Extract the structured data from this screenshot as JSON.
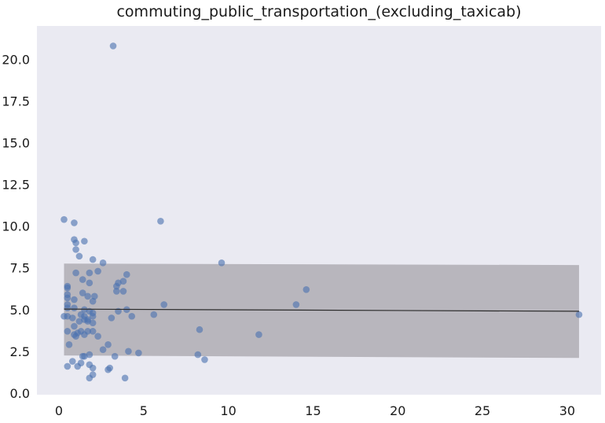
{
  "chart_data": {
    "type": "scatter",
    "title": "commuting_public_transportation_(excluding_taxicab)",
    "xlabel": "",
    "ylabel": "",
    "xlim": [
      -1.3,
      32.0
    ],
    "ylim": [
      -0.1,
      22.0
    ],
    "x_ticks": [
      0,
      5,
      10,
      15,
      20,
      25,
      30
    ],
    "x_tick_labels": [
      "0",
      "5",
      "10",
      "15",
      "20",
      "25",
      "30"
    ],
    "y_ticks": [
      0.0,
      2.5,
      5.0,
      7.5,
      10.0,
      12.5,
      15.0,
      17.5,
      20.0
    ],
    "y_tick_labels": [
      "0.0",
      "2.5",
      "5.0",
      "7.5",
      "10.0",
      "12.5",
      "15.0",
      "17.5",
      "20.0"
    ],
    "grid": false,
    "colors": {
      "background": "#eaeaf2",
      "points": "#4c72b0",
      "band": "#b8b6bd",
      "line": "#2b2b2b"
    },
    "points": [
      [
        3.2,
        20.8
      ],
      [
        0.3,
        10.4
      ],
      [
        0.9,
        10.2
      ],
      [
        6.0,
        10.3
      ],
      [
        0.9,
        9.2
      ],
      [
        1.0,
        9.0
      ],
      [
        1.5,
        9.1
      ],
      [
        1.0,
        8.6
      ],
      [
        1.2,
        8.2
      ],
      [
        2.0,
        8.0
      ],
      [
        2.6,
        7.8
      ],
      [
        9.6,
        7.8
      ],
      [
        1.0,
        7.2
      ],
      [
        1.8,
        7.2
      ],
      [
        2.3,
        7.3
      ],
      [
        4.0,
        7.1
      ],
      [
        1.8,
        6.6
      ],
      [
        3.5,
        6.6
      ],
      [
        3.8,
        6.7
      ],
      [
        3.4,
        6.4
      ],
      [
        0.5,
        6.4
      ],
      [
        0.5,
        6.3
      ],
      [
        1.4,
        6.8
      ],
      [
        1.4,
        6.0
      ],
      [
        3.4,
        6.1
      ],
      [
        3.8,
        6.1
      ],
      [
        14.6,
        6.2
      ],
      [
        0.5,
        5.9
      ],
      [
        0.5,
        5.7
      ],
      [
        0.9,
        5.6
      ],
      [
        1.7,
        5.8
      ],
      [
        2.1,
        5.8
      ],
      [
        2.0,
        5.5
      ],
      [
        0.5,
        5.3
      ],
      [
        0.5,
        5.1
      ],
      [
        0.9,
        5.1
      ],
      [
        6.2,
        5.3
      ],
      [
        14.0,
        5.3
      ],
      [
        1.5,
        5.0
      ],
      [
        1.8,
        4.9
      ],
      [
        2.0,
        4.8
      ],
      [
        3.5,
        4.9
      ],
      [
        4.0,
        5.0
      ],
      [
        0.3,
        4.6
      ],
      [
        0.5,
        4.6
      ],
      [
        0.8,
        4.5
      ],
      [
        1.3,
        4.7
      ],
      [
        1.5,
        4.6
      ],
      [
        1.7,
        4.4
      ],
      [
        2.0,
        4.6
      ],
      [
        3.1,
        4.5
      ],
      [
        4.3,
        4.6
      ],
      [
        5.6,
        4.7
      ],
      [
        30.7,
        4.7
      ],
      [
        1.2,
        4.3
      ],
      [
        1.5,
        4.4
      ],
      [
        1.7,
        4.3
      ],
      [
        2.0,
        4.2
      ],
      [
        0.9,
        4.0
      ],
      [
        1.1,
        3.6
      ],
      [
        1.3,
        3.7
      ],
      [
        1.5,
        3.5
      ],
      [
        1.7,
        3.7
      ],
      [
        0.5,
        3.7
      ],
      [
        0.9,
        3.5
      ],
      [
        1.0,
        3.4
      ],
      [
        2.0,
        3.7
      ],
      [
        2.3,
        3.4
      ],
      [
        8.3,
        3.8
      ],
      [
        11.8,
        3.5
      ],
      [
        0.6,
        2.9
      ],
      [
        2.9,
        2.9
      ],
      [
        2.6,
        2.6
      ],
      [
        1.4,
        2.2
      ],
      [
        1.5,
        2.2
      ],
      [
        1.8,
        2.3
      ],
      [
        3.3,
        2.2
      ],
      [
        4.1,
        2.5
      ],
      [
        4.7,
        2.4
      ],
      [
        8.2,
        2.3
      ],
      [
        0.8,
        1.9
      ],
      [
        1.3,
        1.8
      ],
      [
        1.8,
        1.7
      ],
      [
        8.6,
        2.0
      ],
      [
        0.5,
        1.6
      ],
      [
        1.1,
        1.6
      ],
      [
        2.0,
        1.5
      ],
      [
        3.0,
        1.5
      ],
      [
        2.9,
        1.4
      ],
      [
        2.0,
        1.1
      ],
      [
        1.8,
        0.9
      ],
      [
        3.9,
        0.9
      ]
    ],
    "fit_line": [
      [
        0.3,
        5.03
      ],
      [
        30.7,
        4.9
      ]
    ],
    "band_upper": [
      [
        0.3,
        7.76
      ],
      [
        30.7,
        7.67
      ]
    ],
    "band_lower": [
      [
        0.3,
        2.25
      ],
      [
        30.7,
        2.1
      ]
    ]
  }
}
